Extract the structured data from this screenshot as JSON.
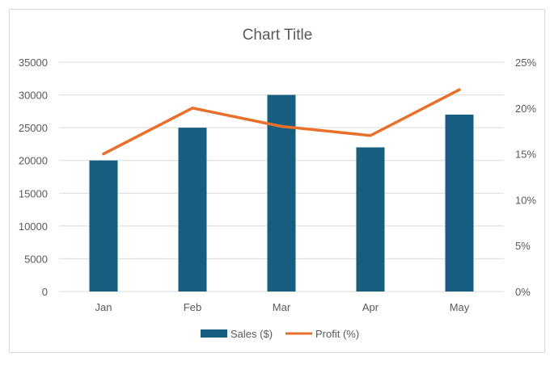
{
  "chart_data": {
    "type": "bar",
    "title": "Chart Title",
    "categories": [
      "Jan",
      "Feb",
      "Mar",
      "Apr",
      "May"
    ],
    "series": [
      {
        "name": "Sales ($)",
        "type": "bar",
        "axis": "primary",
        "values": [
          20000,
          25000,
          30000,
          22000,
          27000
        ],
        "color": "#155e80"
      },
      {
        "name": "Profit (%)",
        "type": "line",
        "axis": "secondary",
        "values": [
          0.15,
          0.2,
          0.18,
          0.17,
          0.22
        ],
        "color": "#e8702a"
      }
    ],
    "y_primary": {
      "ylim": [
        0,
        35000
      ],
      "ticks": [
        "0",
        "5000",
        "10000",
        "15000",
        "20000",
        "25000",
        "30000",
        "35000"
      ]
    },
    "y_secondary": {
      "ylim": [
        0,
        0.25
      ],
      "ticks": [
        "0%",
        "5%",
        "10%",
        "15%",
        "20%",
        "25%"
      ]
    },
    "grid": true,
    "legend": "bottom",
    "gridline_color": "#d9d9d9"
  }
}
